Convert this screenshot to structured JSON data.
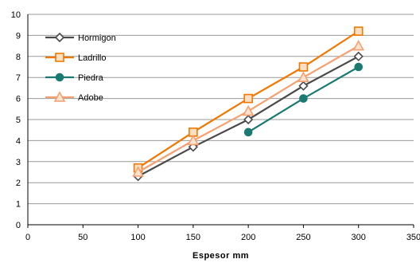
{
  "chart_data": {
    "type": "line",
    "title": "",
    "xlabel": "Espesor mm",
    "ylabel": "",
    "x": [
      100,
      150,
      200,
      250,
      300
    ],
    "xlim": [
      0,
      350
    ],
    "ylim": [
      0,
      10
    ],
    "x_ticks": [
      "0",
      "50",
      "100",
      "150",
      "200",
      "250",
      "300",
      "350"
    ],
    "y_ticks": [
      "0",
      "1",
      "2",
      "3",
      "4",
      "5",
      "6",
      "7",
      "8",
      "9",
      "10"
    ],
    "grid": "horizontal",
    "legend_position": "top-left",
    "series": [
      {
        "name": "Hormigon",
        "values": [
          2.3,
          3.7,
          5.0,
          6.6,
          8.0
        ],
        "color": "#4a4a4a",
        "marker": "diamond"
      },
      {
        "name": "Ladrillo",
        "values": [
          2.7,
          4.4,
          6.0,
          7.5,
          9.2
        ],
        "color": "#f07800",
        "marker": "square"
      },
      {
        "name": "Piedra",
        "values": [
          null,
          null,
          4.4,
          6.0,
          7.5
        ],
        "color": "#1a7a72",
        "marker": "circle"
      },
      {
        "name": "Adobe",
        "values": [
          2.5,
          4.0,
          5.4,
          7.0,
          8.5
        ],
        "color": "#f4a070",
        "marker": "triangle"
      }
    ]
  }
}
